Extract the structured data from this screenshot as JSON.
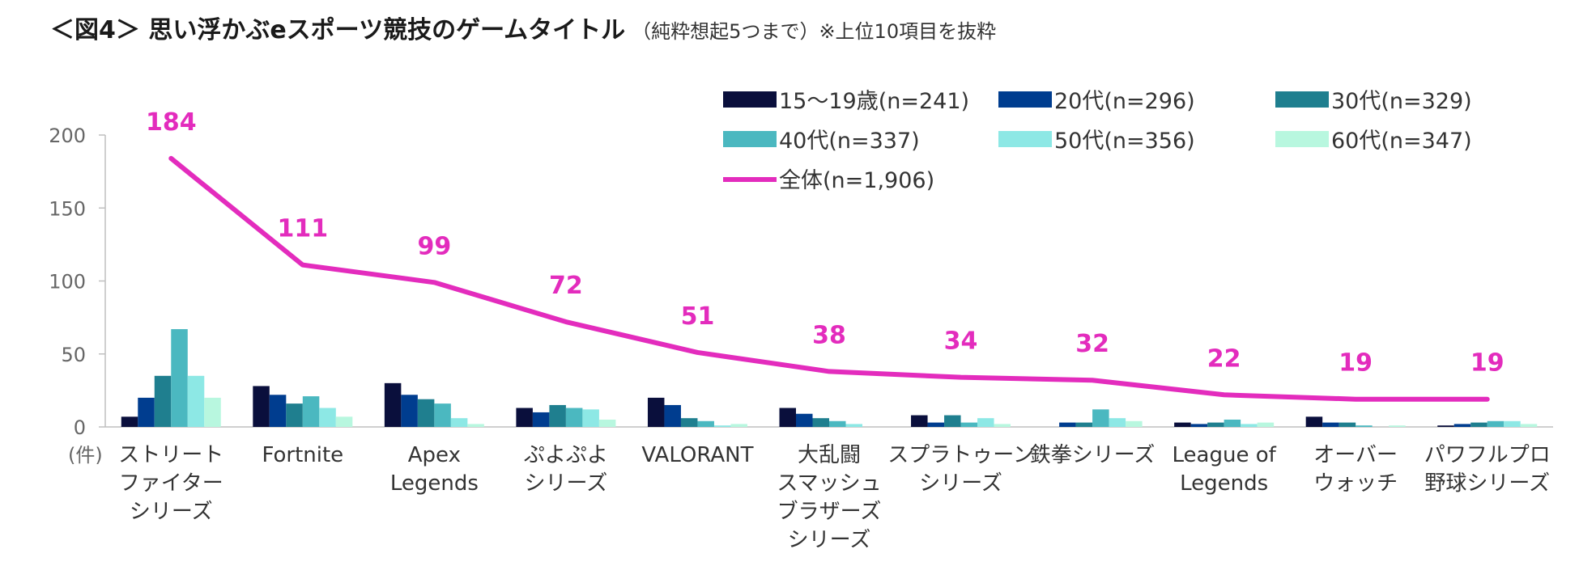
{
  "header": {
    "title": "＜図4＞ 思い浮かぶeスポーツ競技のゲームタイトル",
    "subtitle": "（純粋想起5つまで）※上位10項目を抜粋"
  },
  "chart_data": {
    "type": "bar",
    "title": "＜図4＞ 思い浮かぶeスポーツ競技のゲームタイトル",
    "subtitle": "（純粋想起5つまで）※上位10項目を抜粋",
    "ylabel": "(件)",
    "ylim": [
      0,
      200
    ],
    "yticks": [
      0,
      50,
      100,
      150,
      200
    ],
    "legend_position": "top-right",
    "categories": [
      [
        "ストリート",
        "ファイター",
        "シリーズ"
      ],
      [
        "Fortnite"
      ],
      [
        "Apex",
        "Legends"
      ],
      [
        "ぷよぷよ",
        "シリーズ"
      ],
      [
        "VALORANT"
      ],
      [
        "大乱闘",
        "スマッシュ",
        "ブラザーズ",
        "シリーズ"
      ],
      [
        "スプラトゥーン",
        "シリーズ"
      ],
      [
        "鉄拳シリーズ"
      ],
      [
        "League of",
        "Legends"
      ],
      [
        "オーバー",
        "ウォッチ"
      ],
      [
        "パワフルプロ",
        "野球シリーズ"
      ]
    ],
    "series": [
      {
        "name": "15～19歳(n=241)",
        "color": "#0a0f3c",
        "values": [
          7,
          28,
          30,
          13,
          20,
          13,
          8,
          0,
          3,
          7,
          1
        ]
      },
      {
        "name": "20代(n=296)",
        "color": "#003d8f",
        "values": [
          20,
          22,
          22,
          10,
          15,
          9,
          3,
          3,
          2,
          3,
          2
        ]
      },
      {
        "name": "30代(n=329)",
        "color": "#1f7f8f",
        "values": [
          35,
          16,
          19,
          15,
          6,
          6,
          8,
          3,
          3,
          3,
          3
        ]
      },
      {
        "name": "40代(n=337)",
        "color": "#4bb8c0",
        "values": [
          67,
          21,
          16,
          13,
          4,
          4,
          3,
          12,
          5,
          1,
          4
        ]
      },
      {
        "name": "50代(n=356)",
        "color": "#8de8e5",
        "values": [
          35,
          13,
          6,
          12,
          1,
          2,
          6,
          6,
          2,
          0,
          4
        ]
      },
      {
        "name": "60代(n=347)",
        "color": "#b8f7df",
        "values": [
          20,
          7,
          2,
          5,
          2,
          0,
          2,
          4,
          3,
          1,
          2
        ]
      }
    ],
    "line_series": {
      "name": "全体(n=1,906)",
      "color": "#e32cbd",
      "values": [
        184,
        111,
        99,
        72,
        51,
        38,
        34,
        32,
        22,
        19,
        19
      ]
    }
  }
}
